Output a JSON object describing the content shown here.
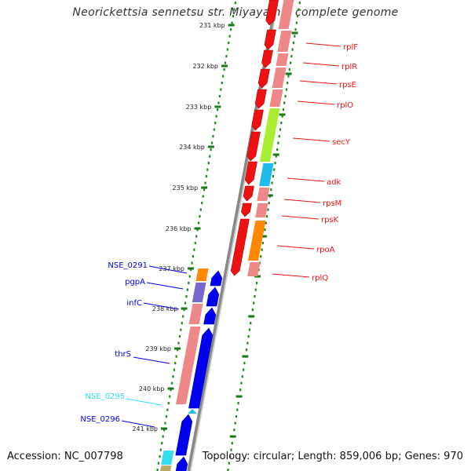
{
  "title": "Neorickettsia sennetsu str. Miyayama, complete genome",
  "footer": {
    "accession": "Accession: NC_007798",
    "topology": "Topology: circular; Length: 859,006 bp; Genes: 970"
  },
  "ruler": {
    "ticks": [
      "231 kbp",
      "232 kbp",
      "233 kbp",
      "234 kbp",
      "235 kbp",
      "236 kbp",
      "237 kbp",
      "238 kbp",
      "239 kbp",
      "240 kbp",
      "241 kbp"
    ]
  },
  "colors": {
    "red": "#ee1111",
    "pink": "#ee8888",
    "green": "#aaee33",
    "cyan": "#22bbee",
    "orange": "#ff8800",
    "purple": "#7766cc",
    "blue": "#0000ee",
    "skyblue": "#33ddee",
    "ruler": "#228822",
    "backbone": "#888888"
  },
  "genes": {
    "right": [
      {
        "label": "rplF",
        "color": "red"
      },
      {
        "label": "rplR",
        "color": "red"
      },
      {
        "label": "rpsE",
        "color": "red"
      },
      {
        "label": "rplO",
        "color": "red"
      },
      {
        "label": "secY",
        "color": "red"
      },
      {
        "label": "adk",
        "color": "red"
      },
      {
        "label": "rpsM",
        "color": "red"
      },
      {
        "label": "rpsK",
        "color": "red"
      },
      {
        "label": "rpoA",
        "color": "red"
      },
      {
        "label": "rplQ",
        "color": "red"
      }
    ],
    "left": [
      {
        "label": "NSE_0291",
        "color": "blue"
      },
      {
        "label": "pgpA",
        "color": "blue"
      },
      {
        "label": "infC",
        "color": "blue"
      },
      {
        "label": "thrS",
        "color": "blue"
      },
      {
        "label": "NSE_0295",
        "color": "skyblue"
      },
      {
        "label": "NSE_0296",
        "color": "blue"
      }
    ]
  }
}
